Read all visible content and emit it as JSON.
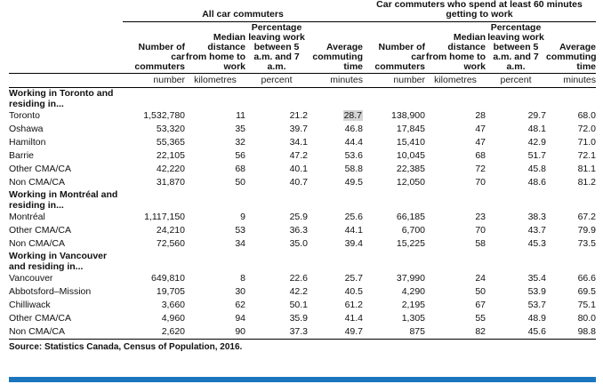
{
  "headers": {
    "group_all": "All car commuters",
    "group_60": "Car commuters who spend at least 60 minutes getting to work",
    "columns": [
      {
        "label": "Number of car commuters",
        "unit": "number"
      },
      {
        "label": "Median distance from home to work",
        "unit": "kilometres"
      },
      {
        "label": "Percentage leaving work between 5 a.m. and 7 a.m.",
        "unit": "percent"
      },
      {
        "label": "Average commuting time",
        "unit": "minutes"
      },
      {
        "label": "Number of car commuters",
        "unit": "number"
      },
      {
        "label": "Median distance from home to work",
        "unit": "kilometres"
      },
      {
        "label": "Percentage leaving work between 5 a.m. and 7 a.m.",
        "unit": "percent"
      },
      {
        "label": "Average commuting time",
        "unit": "minutes"
      }
    ]
  },
  "sections": [
    {
      "title": "Working in Toronto and residing in...",
      "rows": [
        {
          "name": "Toronto",
          "values": [
            "1,532,780",
            "11",
            "21.2",
            "28.7",
            "138,900",
            "28",
            "29.7",
            "68.0"
          ]
        },
        {
          "name": "Oshawa",
          "values": [
            "53,320",
            "35",
            "39.7",
            "46.8",
            "17,845",
            "47",
            "48.1",
            "72.0"
          ]
        },
        {
          "name": "Hamilton",
          "values": [
            "55,365",
            "32",
            "34.1",
            "44.4",
            "15,410",
            "47",
            "42.9",
            "71.0"
          ]
        },
        {
          "name": "Barrie",
          "values": [
            "22,105",
            "56",
            "47.2",
            "53.6",
            "10,045",
            "68",
            "51.7",
            "72.1"
          ]
        },
        {
          "name": "Other CMA/CA",
          "values": [
            "42,220",
            "68",
            "40.1",
            "58.8",
            "22,385",
            "72",
            "45.8",
            "81.1"
          ]
        },
        {
          "name": "Non CMA/CA",
          "values": [
            "31,870",
            "50",
            "40.7",
            "49.5",
            "12,050",
            "70",
            "48.6",
            "81.2"
          ]
        }
      ]
    },
    {
      "title": "Working in Montréal and residing in...",
      "rows": [
        {
          "name": "Montréal",
          "values": [
            "1,117,150",
            "9",
            "25.9",
            "25.6",
            "66,185",
            "23",
            "38.3",
            "67.2"
          ]
        },
        {
          "name": "Other CMA/CA",
          "values": [
            "24,210",
            "53",
            "36.3",
            "44.1",
            "6,700",
            "70",
            "43.7",
            "79.9"
          ]
        },
        {
          "name": "Non CMA/CA",
          "values": [
            "72,560",
            "34",
            "35.0",
            "39.4",
            "15,225",
            "58",
            "45.3",
            "73.5"
          ]
        }
      ]
    },
    {
      "title": "Working in Vancouver and residing in...",
      "rows": [
        {
          "name": "Vancouver",
          "values": [
            "649,810",
            "8",
            "22.6",
            "25.7",
            "37,990",
            "24",
            "35.4",
            "66.6"
          ]
        },
        {
          "name": "Abbotsford–Mission",
          "values": [
            "19,705",
            "30",
            "42.2",
            "40.5",
            "4,290",
            "50",
            "53.9",
            "69.5"
          ]
        },
        {
          "name": "Chilliwack",
          "values": [
            "3,660",
            "62",
            "50.1",
            "61.2",
            "2,195",
            "67",
            "53.7",
            "75.1"
          ]
        },
        {
          "name": "Other CMA/CA",
          "values": [
            "4,960",
            "94",
            "35.9",
            "41.4",
            "1,305",
            "55",
            "48.9",
            "80.0"
          ]
        },
        {
          "name": "Non CMA/CA",
          "values": [
            "2,620",
            "90",
            "37.3",
            "49.7",
            "875",
            "82",
            "45.6",
            "98.8"
          ]
        }
      ]
    }
  ],
  "source": "Source: Statistics Canada, Census of Population, 2016.",
  "accent_color": "#1b75bc",
  "highlight_color": "#d4d4d4"
}
